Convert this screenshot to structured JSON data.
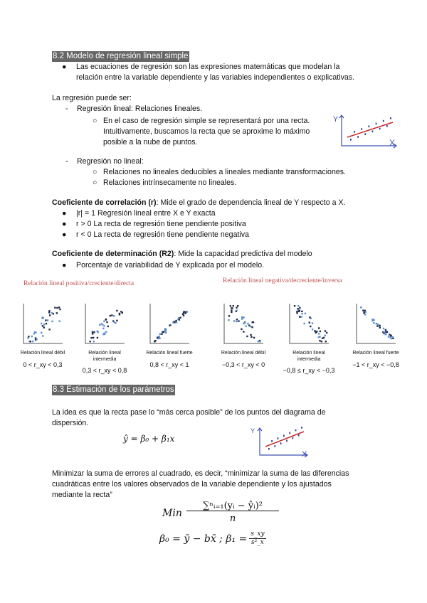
{
  "section1": {
    "heading": "8.2 Modelo de regresión lineal simple",
    "bullet1": [
      "Las ecuaciones de regresión son las expresiones matemáticas que modelan la",
      "relación entre la variable dependiente y las variables independientes o explicativas."
    ],
    "intro": "La regresión puede ser:",
    "linear": {
      "label": "Regresión lineal: Relaciones lineales.",
      "sub": [
        "En el caso de regresión simple se representará por una recta.",
        "Intuitivamente, buscamos la recta que se aproxime lo máximo",
        "posible a la nube de puntos."
      ]
    },
    "nonlinear": {
      "label": "Regresión no lineal:",
      "sub": [
        "Relaciones no lineales deducibles a lineales mediante transformaciones.",
        "Relaciones intrínsecamente no lineales."
      ]
    },
    "axis_y": "Y",
    "axis_x": "X",
    "correlation": {
      "term": "Coeficiente de correlación (r)",
      "desc": ": Mide el grado de dependencia lineal de Y respecto a X.",
      "items": [
        "|r| = 1 Regresión lineal entre X e Y exacta",
        "r > 0 La recta de regresión tiene pendiente positiva",
        "r < 0 La recta de regresión tiene pendiente negativa"
      ]
    },
    "determination": {
      "term": "Coeficiente de determinación (R2)",
      "desc": ": Mide la capacidad predictiva del modelo",
      "items": [
        "Porcentaje de variabilidad de Y explicada por el modelo."
      ]
    },
    "positive_title": "Relación lineal positiva/creciente/directa",
    "negative_title": "Relación lineal negativa/decreciente/inversa",
    "plots": [
      {
        "caption": "Relación lineal débil",
        "range": "0 < r_xy < 0,3"
      },
      {
        "caption": "Relación lineal intermedia",
        "range": "0,3 < r_xy < 0,8"
      },
      {
        "caption": "Relación lineal fuerte",
        "range": "0,8 < r_xy < 1"
      },
      {
        "caption": "Relación lineal débil",
        "range": "−0,3 < r_xy < 0"
      },
      {
        "caption": "Relación lineal intermedia",
        "range": "−0,8 ≤ r_xy < −0,3"
      },
      {
        "caption": "Relación lineal fuerte",
        "range": "−1 < r_xy < −0,8"
      }
    ]
  },
  "section2": {
    "heading": "8.3 Estimación de los parámetros",
    "idea": [
      "La idea es que la recta pase lo “más cerca posible” de los puntos del diagrama de",
      "dispersión."
    ],
    "model": "ŷ = β₀ + β₁x",
    "minimize": [
      "Minimizar la suma de errores al cuadrado, es decir, “minimizar la suma de las diferencias",
      "cuadráticas entre los valores observados de la variable dependiente y los ajustados",
      "mediante la recta”"
    ],
    "min_label": "Min",
    "min_num": "∑ⁿᵢ₌₁(yᵢ − ŷᵢ)²",
    "min_den": "n",
    "beta": "β₀ = ȳ − bx̄ ; β₁ = ",
    "beta_num": "s_xy",
    "beta_den": "s²_x"
  },
  "colors": {
    "heading_bg": "#666666",
    "red_title": "#c0504d",
    "axis": "#3f51b5",
    "line": "#c62828"
  }
}
